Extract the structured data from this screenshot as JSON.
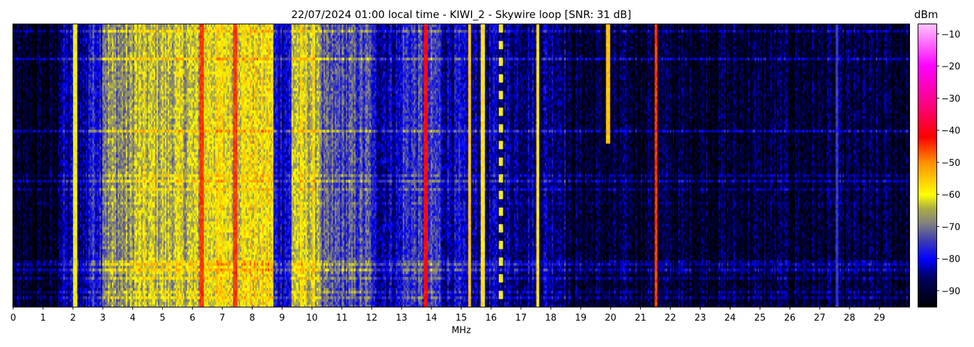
{
  "chart_data": {
    "type": "heatmap",
    "title": "22/07/2024 01:00 local time - KIWI_2 - Skywire loop [SNR: 31 dB]",
    "xlabel": "MHz",
    "ylabel": "",
    "xlim": [
      0,
      30
    ],
    "x_ticks": [
      "0",
      "1",
      "2",
      "3",
      "4",
      "5",
      "6",
      "7",
      "8",
      "9",
      "10",
      "11",
      "12",
      "13",
      "14",
      "15",
      "16",
      "17",
      "18",
      "19",
      "20",
      "21",
      "22",
      "23",
      "24",
      "25",
      "26",
      "27",
      "28",
      "29"
    ],
    "colorbar": {
      "label": "dBm",
      "range": [
        -95,
        -7
      ],
      "ticks": [
        "−10",
        "−20",
        "−30",
        "−40",
        "−50",
        "−60",
        "−70",
        "−80",
        "−90"
      ],
      "tick_values": [
        -10,
        -20,
        -30,
        -40,
        -50,
        -60,
        -70,
        -80,
        -90
      ],
      "colormap": [
        {
          "dbm": -95,
          "color": "#000000"
        },
        {
          "dbm": -86,
          "color": "#000060"
        },
        {
          "dbm": -80,
          "color": "#0000ff"
        },
        {
          "dbm": -74,
          "color": "#4040b0"
        },
        {
          "dbm": -69,
          "color": "#808080"
        },
        {
          "dbm": -64,
          "color": "#b0b040"
        },
        {
          "dbm": -60,
          "color": "#ffff00"
        },
        {
          "dbm": -50,
          "color": "#ff9000"
        },
        {
          "dbm": -42,
          "color": "#ff0000"
        },
        {
          "dbm": -32,
          "color": "#ff0080"
        },
        {
          "dbm": -20,
          "color": "#ff00ff"
        },
        {
          "dbm": -7,
          "color": "#ffc0ff"
        }
      ]
    },
    "band_levels_dbm": [
      {
        "from": 0,
        "to": 1.5,
        "level": -92
      },
      {
        "from": 1.5,
        "to": 2.5,
        "level": -84
      },
      {
        "from": 2.5,
        "to": 3.0,
        "level": -77
      },
      {
        "from": 3.0,
        "to": 4.0,
        "level": -68
      },
      {
        "from": 4.0,
        "to": 6.3,
        "level": -64
      },
      {
        "from": 6.3,
        "to": 8.7,
        "level": -60
      },
      {
        "from": 8.7,
        "to": 9.3,
        "level": -80
      },
      {
        "from": 9.3,
        "to": 10.3,
        "level": -63
      },
      {
        "from": 10.3,
        "to": 12.0,
        "level": -74
      },
      {
        "from": 12.0,
        "to": 13.0,
        "level": -82
      },
      {
        "from": 13.0,
        "to": 14.3,
        "level": -76
      },
      {
        "from": 14.3,
        "to": 15.0,
        "level": -82
      },
      {
        "from": 15.0,
        "to": 18.5,
        "level": -84
      },
      {
        "from": 18.5,
        "to": 30.0,
        "level": -90
      }
    ],
    "carriers": [
      {
        "mhz": 2.05,
        "level": -60
      },
      {
        "mhz": 6.3,
        "level": -45
      },
      {
        "mhz": 7.4,
        "level": -45
      },
      {
        "mhz": 13.8,
        "level": -42
      },
      {
        "mhz": 15.25,
        "level": -55
      },
      {
        "mhz": 15.7,
        "level": -58
      },
      {
        "mhz": 16.3,
        "level": -60,
        "intermittent": true
      },
      {
        "mhz": 17.55,
        "level": -58
      },
      {
        "mhz": 19.9,
        "level": -55,
        "partial": true
      },
      {
        "mhz": 21.5,
        "level": -45
      },
      {
        "mhz": 27.55,
        "level": -75
      }
    ],
    "grid": false,
    "legend": "colorbar-right"
  }
}
